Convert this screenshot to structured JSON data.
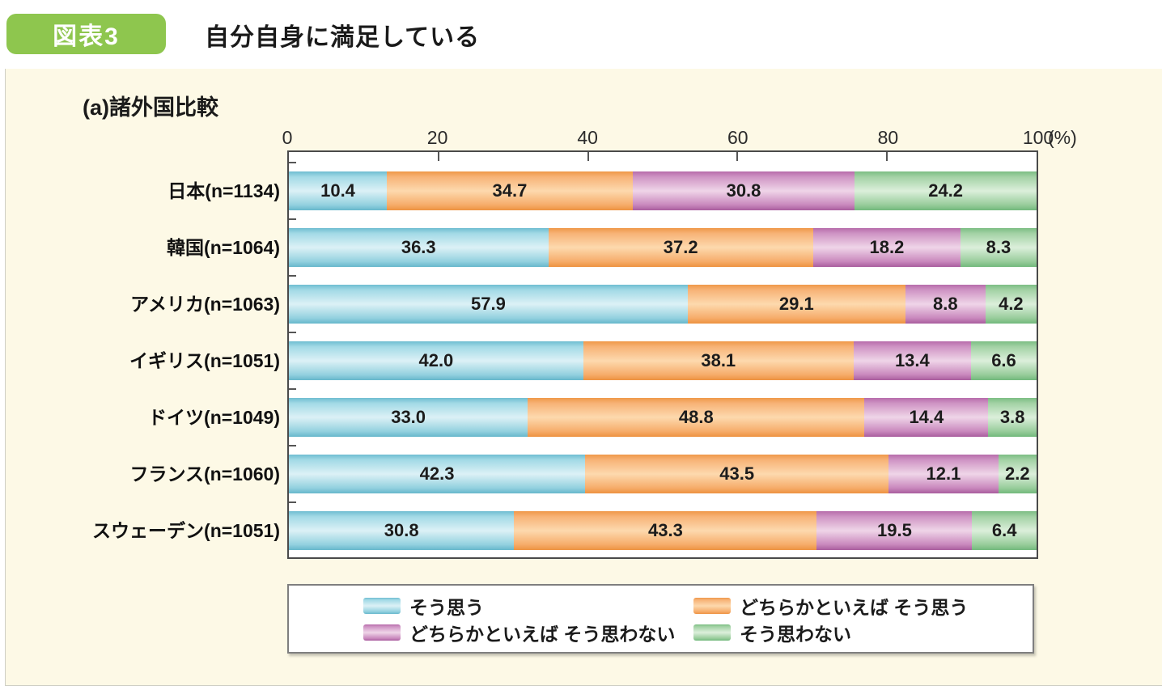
{
  "figure": {
    "badge": "図表3",
    "title": "自分自身に満足している",
    "subtitle": "(a)諸外国比較",
    "unit_label": "(%)",
    "badge_color": "#8ec64e",
    "background_color": "#fdf9e6"
  },
  "chart_data": {
    "type": "bar",
    "orientation": "horizontal-stacked",
    "title": "自分自身に満足している (a)諸外国比較",
    "xlabel": "(%)",
    "xlim": [
      0,
      100
    ],
    "x_ticks": [
      0,
      20,
      40,
      60,
      80,
      100
    ],
    "legend_position": "bottom",
    "categories": [
      "日本(n=1134)",
      "韓国(n=1064)",
      "アメリカ(n=1063)",
      "イギリス(n=1051)",
      "ドイツ(n=1049)",
      "フランス(n=1060)",
      "スウェーデン(n=1051)"
    ],
    "series": [
      {
        "name": "そう思う",
        "color": "#8ccfdf",
        "gradient": [
          "#6fbdd1",
          "#a3dae6",
          "#dcf1f6",
          "#93d1df",
          "#66b7cb"
        ],
        "values": [
          10.4,
          36.3,
          57.9,
          42.0,
          33.0,
          42.3,
          30.8
        ]
      },
      {
        "name": "どちらかといえば そう思う",
        "color": "#f6a85f",
        "gradient": [
          "#ef9849",
          "#f7b377",
          "#fdd9ae",
          "#f6ac6a",
          "#ed9240"
        ],
        "values": [
          34.7,
          37.2,
          29.1,
          38.1,
          48.8,
          43.5,
          43.3
        ]
      },
      {
        "name": "どちらかといえば そう思わない",
        "color": "#bf77b2",
        "gradient": [
          "#b76cab",
          "#cf94c4",
          "#efd5e8",
          "#c988bd",
          "#a95d9e"
        ],
        "values": [
          30.8,
          18.2,
          8.8,
          13.4,
          14.4,
          12.1,
          19.5
        ]
      },
      {
        "name": "そう思わない",
        "color": "#8cc791",
        "gradient": [
          "#7cbe83",
          "#a3d2a5",
          "#dcefdb",
          "#98cc9b",
          "#72b97c"
        ],
        "values": [
          24.2,
          8.3,
          4.2,
          6.6,
          3.8,
          2.2,
          6.4
        ]
      }
    ]
  }
}
